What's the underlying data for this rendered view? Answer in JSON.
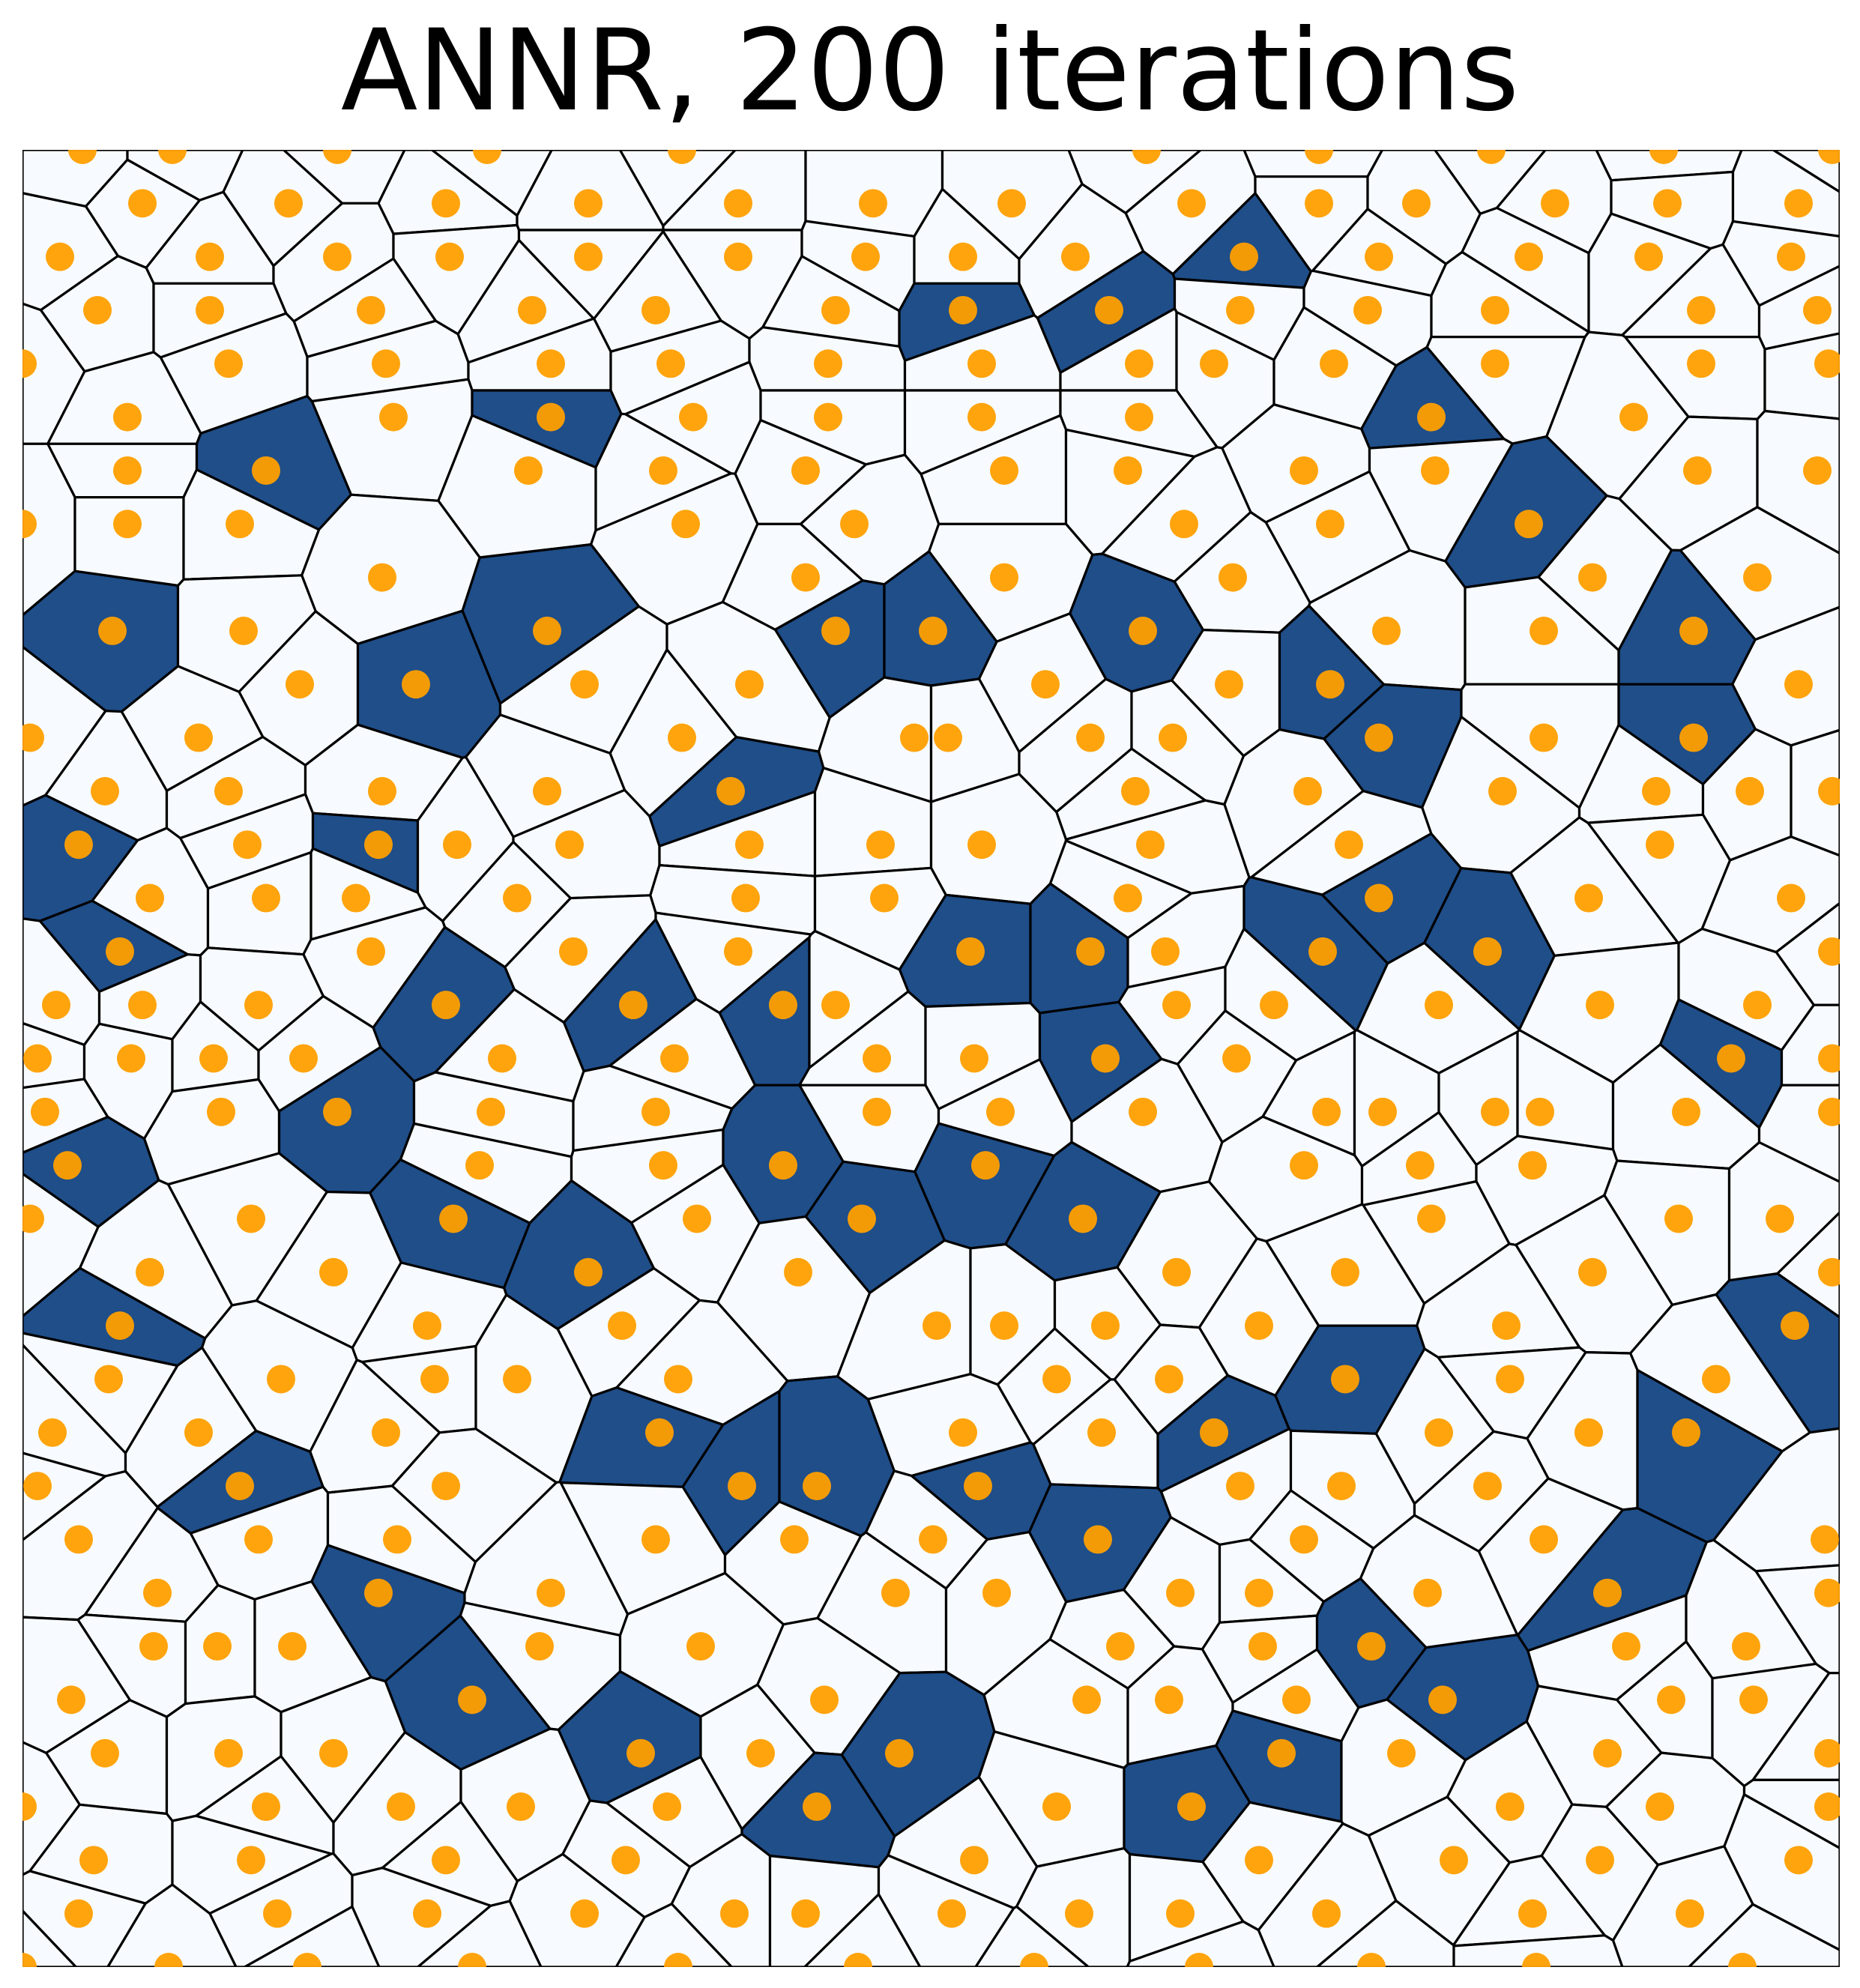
{
  "title": "ANNR, 200 iterations",
  "colors": {
    "background_cell": "#f7fbff",
    "filled_cell": "#1f4e89",
    "edge": "#000000",
    "point": "#ff9f00"
  },
  "point_rows": [
    [
      110,
      230,
      450,
      650,
      910,
      1530,
      1760,
      1990,
      2220,
      2445
    ],
    [
      190,
      385,
      595,
      785,
      985,
      1165,
      1350,
      1590,
      1760,
      1890,
      2075,
      2225,
      2400
    ],
    [
      80,
      280,
      450,
      600,
      785,
      985,
      1155,
      1285,
      1435,
      1660,
      1840,
      2040,
      2200,
      2390
    ],
    [
      130,
      280,
      495,
      710,
      875,
      1115,
      1285,
      1480,
      1655,
      1825,
      1995,
      2270,
      2425
    ],
    [
      30,
      305,
      515,
      735,
      895,
      1105,
      1310,
      1520,
      1620,
      1780,
      1995,
      2270,
      2440
    ],
    [
      170,
      525,
      735,
      925,
      1105,
      1310,
      1520,
      1910,
      2180
    ],
    [
      170,
      355,
      705,
      885,
      1075,
      1340,
      1505,
      1740,
      1915,
      2265,
      2425
    ],
    [
      30,
      170,
      320,
      915,
      1140,
      1580,
      1775,
      2040
    ],
    [
      510,
      1075,
      1340,
      1645,
      2125,
      2345
    ],
    [
      150,
      325,
      730,
      1115,
      1245,
      1525,
      1850,
      2060,
      2260
    ],
    [
      400,
      555,
      780,
      1000,
      1395,
      1640,
      1775,
      2400
    ],
    [
      40,
      265,
      910,
      1220,
      1265,
      1455,
      1565,
      1840,
      2060,
      2260
    ],
    [
      140,
      305,
      510,
      730,
      975,
      1515,
      1745,
      2005,
      2210,
      2335,
      2445
    ],
    [
      105,
      330,
      505,
      610,
      760,
      1000,
      1175,
      1310,
      1535,
      1800,
      2215
    ],
    [
      200,
      355,
      475,
      690,
      995,
      1180,
      1505,
      1840,
      2120,
      2390
    ],
    [
      160,
      495,
      765,
      985,
      1295,
      1455,
      1555,
      1765,
      1985,
      2445
    ],
    [
      75,
      190,
      345,
      595,
      845,
      1045,
      1115,
      1570,
      1700,
      1920,
      2135,
      2345
    ],
    [
      50,
      175,
      285,
      405,
      670,
      900,
      1170,
      1300,
      1475,
      1650,
      2310,
      2445
    ],
    [
      60,
      295,
      450,
      655,
      875,
      1170,
      1335,
      1525,
      1770,
      1845,
      1995,
      2055,
      2250,
      2445
    ],
    [
      90,
      640,
      885,
      1045,
      1315,
      1740,
      1895,
      2045
    ],
    [
      40,
      335,
      605,
      930,
      1150,
      1445,
      1910,
      2240,
      2375
    ],
    [
      200,
      445,
      785,
      1065,
      1570,
      1795,
      2125,
      2445
    ],
    [
      160,
      570,
      830,
      1250,
      1340,
      1475,
      1680,
      2010,
      2395
    ],
    [
      145,
      375,
      580,
      690,
      905,
      1410,
      1560,
      1795,
      2015,
      2290
    ],
    [
      70,
      265,
      515,
      880,
      1285,
      1470,
      1620,
      1920,
      2120,
      2250
    ],
    [
      50,
      320,
      595,
      990,
      1090,
      1305,
      1655,
      1790,
      1985
    ],
    [
      105,
      345,
      530,
      875,
      1060,
      1245,
      1465,
      1740,
      2060,
      2435
    ],
    [
      210,
      505,
      735,
      1195,
      1330,
      1575,
      1680,
      1905,
      2145,
      2440
    ],
    [
      205,
      290,
      390,
      720,
      935,
      1495,
      1685,
      1830,
      2170,
      2330
    ],
    [
      95,
      630,
      1100,
      1450,
      1560,
      1730,
      1925,
      2230,
      2340
    ],
    [
      140,
      305,
      445,
      855,
      1015,
      1200,
      1710,
      1870,
      2145,
      2440
    ],
    [
      30,
      355,
      535,
      695,
      890,
      1090,
      1410,
      1590,
      2015,
      2215,
      2440
    ],
    [
      125,
      335,
      595,
      835,
      1300,
      1680,
      1940,
      2135,
      2400
    ],
    [
      105,
      370,
      570,
      780,
      980,
      1075,
      1270,
      1440,
      1575,
      1770,
      2045,
      2255
    ],
    [
      30,
      225,
      410,
      630,
      905,
      1145,
      1380,
      1600,
      1830,
      2050,
      2325
    ]
  ],
  "filled_cells": [
    [
      1282,
      413
    ],
    [
      1435,
      443
    ],
    [
      1587,
      365
    ],
    [
      281,
      596
    ],
    [
      787,
      576
    ],
    [
      710,
      752
    ],
    [
      1840,
      559
    ],
    [
      2031,
      632
    ],
    [
      1110,
      890
    ],
    [
      1312,
      861
    ],
    [
      1520,
      835
    ],
    [
      2265,
      800
    ],
    [
      170,
      938
    ],
    [
      516,
      917
    ],
    [
      1776,
      967
    ],
    [
      910,
      1108
    ],
    [
      2265,
      1025
    ],
    [
      170,
      1123
    ],
    [
      506,
      1164
    ],
    [
      1887,
      1068
    ],
    [
      1874,
      1245
    ],
    [
      1880,
      1193
    ],
    [
      147,
      1298
    ],
    [
      552,
      1358
    ],
    [
      881,
      1260
    ],
    [
      1250,
      1310
    ],
    [
      1398,
      1312
    ],
    [
      1826,
      1286
    ],
    [
      2007,
      1280
    ],
    [
      2345,
      1395
    ],
    [
      980,
      1377
    ],
    [
      1065,
      1480
    ],
    [
      1498,
      1442
    ],
    [
      2345,
      1395
    ],
    [
      105,
      1600
    ],
    [
      505,
      1552
    ],
    [
      1173,
      1626
    ],
    [
      1343,
      1580
    ],
    [
      1527,
      1606
    ],
    [
      615,
      1682
    ],
    [
      200,
      1800
    ],
    [
      765,
      1750
    ],
    [
      848,
      1861
    ],
    [
      1528,
      1610
    ],
    [
      2360,
      1705
    ],
    [
      1555,
      1908
    ],
    [
      1766,
      1873
    ],
    [
      1553,
      1935
    ],
    [
      935,
      1987
    ],
    [
      1143,
      1981
    ],
    [
      2215,
      1868
    ],
    [
      1340,
      1970
    ],
    [
      1475,
      2050
    ],
    [
      346,
      2007
    ],
    [
      2120,
      2075
    ],
    [
      505,
      2240
    ],
    [
      672,
      2257
    ],
    [
      825,
      2305
    ],
    [
      1835,
      2213
    ],
    [
      2012,
      2213
    ],
    [
      1071,
      2365
    ],
    [
      1286,
      2380
    ],
    [
      1500,
      2400
    ],
    [
      1670,
      2345
    ]
  ]
}
